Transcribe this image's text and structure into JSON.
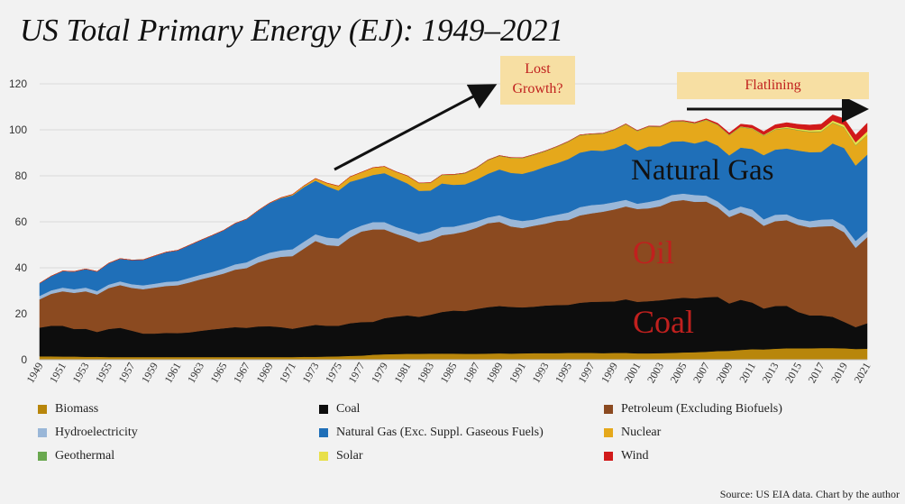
{
  "title": "US Total Primary Energy (EJ): 1949–2021",
  "annotations": {
    "lost_growth": "Lost\nGrowth?",
    "flatlining": "Flatlining",
    "natural_gas": "Natural Gas",
    "oil": "Oil",
    "coal": "Coal"
  },
  "source": "Source: US EIA data. Chart by the author",
  "colors": {
    "background": "#f2f2f2",
    "gridline": "#d9d9d9",
    "callout_fill": "#f7dfa3",
    "callout_text": "#c0201e",
    "arrow": "#111111"
  },
  "chart_data": {
    "type": "area",
    "stacked": true,
    "x": [
      1949,
      1950,
      1951,
      1952,
      1953,
      1954,
      1955,
      1956,
      1957,
      1958,
      1959,
      1960,
      1961,
      1962,
      1963,
      1964,
      1965,
      1966,
      1967,
      1968,
      1969,
      1970,
      1971,
      1972,
      1973,
      1974,
      1975,
      1976,
      1977,
      1978,
      1979,
      1980,
      1981,
      1982,
      1983,
      1984,
      1985,
      1986,
      1987,
      1988,
      1989,
      1990,
      1991,
      1992,
      1993,
      1994,
      1995,
      1996,
      1997,
      1998,
      1999,
      2000,
      2001,
      2002,
      2003,
      2004,
      2005,
      2006,
      2007,
      2008,
      2009,
      2010,
      2011,
      2012,
      2013,
      2014,
      2015,
      2016,
      2017,
      2018,
      2019,
      2020,
      2021
    ],
    "x_tick_labels": [
      "1949",
      "1951",
      "1953",
      "1955",
      "1957",
      "1959",
      "1961",
      "1963",
      "1965",
      "1967",
      "1969",
      "1971",
      "1973",
      "1975",
      "1977",
      "1979",
      "1981",
      "1983",
      "1985",
      "1987",
      "1989",
      "1991",
      "1993",
      "1995",
      "1997",
      "1999",
      "2001",
      "2003",
      "2005",
      "2007",
      "2009",
      "2011",
      "2013",
      "2015",
      "2017",
      "2019",
      "2021"
    ],
    "ylim": [
      0,
      120
    ],
    "y_ticks": [
      0,
      20,
      40,
      60,
      80,
      100,
      120
    ],
    "grid": true,
    "legend_position": "bottom",
    "series": [
      {
        "name": "Biomass",
        "color": "#b8860b",
        "values": [
          1.5,
          1.5,
          1.4,
          1.4,
          1.3,
          1.3,
          1.2,
          1.2,
          1.2,
          1.2,
          1.2,
          1.2,
          1.2,
          1.2,
          1.2,
          1.2,
          1.2,
          1.2,
          1.2,
          1.2,
          1.2,
          1.2,
          1.2,
          1.3,
          1.3,
          1.4,
          1.5,
          1.7,
          1.8,
          2.2,
          2.4,
          2.5,
          2.6,
          2.6,
          2.7,
          2.7,
          2.7,
          2.6,
          2.6,
          2.7,
          2.8,
          2.7,
          2.8,
          2.9,
          2.9,
          2.9,
          3.0,
          3.0,
          3.0,
          2.9,
          3.0,
          3.0,
          2.8,
          2.8,
          2.9,
          3.0,
          3.2,
          3.3,
          3.5,
          3.8,
          3.9,
          4.3,
          4.6,
          4.5,
          4.8,
          5.0,
          5.0,
          5.0,
          5.1,
          5.1,
          5.0,
          4.7,
          4.8
        ]
      },
      {
        "name": "Coal",
        "color": "#0d0d0d",
        "values": [
          12.5,
          13.3,
          13.4,
          12.0,
          12.2,
          10.8,
          12.2,
          12.7,
          11.5,
          10.2,
          10.2,
          10.5,
          10.4,
          10.7,
          11.4,
          12.0,
          12.5,
          13.0,
          12.7,
          13.3,
          13.4,
          13.0,
          12.3,
          13.1,
          13.9,
          13.4,
          13.3,
          14.2,
          14.6,
          14.3,
          15.7,
          16.3,
          16.7,
          16.1,
          16.9,
          18.1,
          18.7,
          18.6,
          19.5,
          20.2,
          20.6,
          20.3,
          20.0,
          20.2,
          20.7,
          20.9,
          20.9,
          21.8,
          22.2,
          22.4,
          22.4,
          23.3,
          22.4,
          22.7,
          23.0,
          23.5,
          23.8,
          23.4,
          23.7,
          23.6,
          20.6,
          21.8,
          20.3,
          17.8,
          18.6,
          18.5,
          15.8,
          14.3,
          14.2,
          13.6,
          11.5,
          9.5,
          11.1
        ]
      },
      {
        "name": "Petroleum (Excluding Biofuels)",
        "color": "#8b4a20",
        "values": [
          12.3,
          13.9,
          15.0,
          15.7,
          16.3,
          16.3,
          17.8,
          18.6,
          18.6,
          19.3,
          20.0,
          20.4,
          20.8,
          21.7,
          22.4,
          23.0,
          23.8,
          25.0,
          26.0,
          27.8,
          29.2,
          30.6,
          31.6,
          34.0,
          36.5,
          35.1,
          34.7,
          37.3,
          39.4,
          40.2,
          38.6,
          36.0,
          33.9,
          32.5,
          32.5,
          33.4,
          33.4,
          34.6,
          35.3,
          36.5,
          36.6,
          35.0,
          34.5,
          35.2,
          35.6,
          36.6,
          36.9,
          38.0,
          38.5,
          39.1,
          40.0,
          40.4,
          40.4,
          40.4,
          40.9,
          42.4,
          42.5,
          42.0,
          41.6,
          38.9,
          37.6,
          38.0,
          37.2,
          36.0,
          36.9,
          37.2,
          37.9,
          38.3,
          38.7,
          39.5,
          39.0,
          34.5,
          37.4
        ]
      },
      {
        "name": "Hydroelectricity",
        "color": "#9ab7d8",
        "values": [
          1.5,
          1.5,
          1.6,
          1.6,
          1.6,
          1.5,
          1.5,
          1.6,
          1.6,
          1.7,
          1.7,
          1.8,
          1.8,
          2.0,
          2.0,
          2.0,
          2.2,
          2.3,
          2.5,
          2.5,
          2.8,
          2.8,
          3.0,
          3.0,
          2.9,
          3.3,
          3.3,
          3.1,
          2.6,
          3.2,
          3.2,
          3.0,
          3.0,
          3.5,
          3.7,
          3.6,
          3.1,
          3.2,
          2.8,
          2.5,
          2.9,
          3.2,
          3.1,
          2.7,
          3.0,
          2.7,
          3.3,
          3.6,
          3.6,
          3.3,
          3.2,
          2.9,
          2.3,
          2.8,
          2.9,
          2.8,
          2.8,
          3.0,
          2.6,
          2.6,
          2.8,
          2.6,
          3.3,
          2.8,
          2.8,
          2.6,
          2.5,
          2.7,
          3.0,
          3.0,
          2.8,
          3.0,
          2.7
        ]
      },
      {
        "name": "Natural Gas (Exc. Suppl. Gaseous Fuels)",
        "color": "#1f6fb8",
        "values": [
          5.5,
          6.2,
          7.2,
          7.7,
          8.1,
          8.5,
          9.3,
          9.9,
          10.5,
          11.1,
          12.1,
          12.9,
          13.4,
          14.2,
          15.0,
          15.9,
          16.6,
          17.8,
          18.7,
          20.0,
          21.5,
          22.7,
          23.4,
          23.7,
          23.3,
          22.3,
          20.8,
          21.1,
          20.4,
          20.5,
          21.3,
          21.1,
          20.5,
          18.8,
          17.8,
          18.9,
          18.2,
          17.3,
          18.1,
          19.0,
          19.9,
          20.1,
          20.5,
          21.2,
          21.8,
          22.4,
          23.2,
          23.7,
          23.8,
          23.2,
          23.3,
          24.4,
          23.1,
          24.1,
          23.2,
          23.2,
          22.8,
          22.4,
          24.0,
          24.3,
          24.0,
          25.6,
          26.3,
          27.9,
          28.3,
          28.6,
          29.8,
          30.0,
          29.4,
          32.9,
          33.8,
          32.8,
          33.2
        ]
      },
      {
        "name": "Nuclear",
        "color": "#e5a81b",
        "values": [
          0,
          0,
          0,
          0,
          0,
          0,
          0,
          0,
          0,
          0,
          0,
          0,
          0,
          0,
          0,
          0,
          0,
          0,
          0.1,
          0.1,
          0.1,
          0.2,
          0.4,
          0.6,
          0.9,
          1.3,
          1.9,
          2.1,
          2.7,
          3.1,
          2.8,
          2.8,
          3.2,
          3.3,
          3.3,
          3.6,
          4.3,
          4.7,
          5.0,
          5.8,
          5.8,
          6.4,
          6.7,
          6.8,
          6.6,
          7.0,
          7.4,
          7.4,
          6.9,
          7.3,
          7.9,
          8.3,
          8.4,
          8.5,
          8.3,
          8.6,
          8.5,
          8.6,
          8.8,
          8.8,
          8.7,
          8.9,
          8.7,
          8.4,
          8.7,
          8.8,
          8.8,
          8.8,
          8.8,
          8.9,
          8.9,
          8.7,
          8.5
        ]
      },
      {
        "name": "Geothermal",
        "color": "#6aa84f",
        "values": [
          0,
          0,
          0,
          0,
          0,
          0,
          0,
          0,
          0,
          0,
          0,
          0,
          0,
          0,
          0,
          0,
          0,
          0,
          0,
          0,
          0,
          0,
          0,
          0,
          0.05,
          0.05,
          0.08,
          0.08,
          0.08,
          0.07,
          0.09,
          0.1,
          0.13,
          0.11,
          0.13,
          0.17,
          0.2,
          0.22,
          0.23,
          0.22,
          0.22,
          0.2,
          0.2,
          0.2,
          0.2,
          0.2,
          0.2,
          0.2,
          0.2,
          0.2,
          0.2,
          0.2,
          0.2,
          0.2,
          0.2,
          0.2,
          0.2,
          0.2,
          0.2,
          0.2,
          0.2,
          0.2,
          0.2,
          0.2,
          0.2,
          0.2,
          0.2,
          0.2,
          0.2,
          0.2,
          0.2,
          0.2,
          0.2
        ]
      },
      {
        "name": "Solar",
        "color": "#e8e04a",
        "values": [
          0,
          0,
          0,
          0,
          0,
          0,
          0,
          0,
          0,
          0,
          0,
          0,
          0,
          0,
          0,
          0,
          0,
          0,
          0,
          0,
          0,
          0,
          0,
          0,
          0,
          0,
          0,
          0,
          0,
          0,
          0,
          0,
          0,
          0,
          0,
          0,
          0,
          0,
          0,
          0,
          0,
          0.06,
          0.06,
          0.06,
          0.06,
          0.07,
          0.07,
          0.07,
          0.07,
          0.07,
          0.07,
          0.07,
          0.06,
          0.06,
          0.06,
          0.06,
          0.07,
          0.07,
          0.08,
          0.09,
          0.1,
          0.13,
          0.17,
          0.23,
          0.32,
          0.43,
          0.5,
          0.6,
          0.76,
          0.84,
          0.95,
          1.2,
          1.4
        ]
      },
      {
        "name": "Wind",
        "color": "#d11a1a",
        "values": [
          0,
          0,
          0,
          0,
          0,
          0,
          0,
          0,
          0,
          0,
          0,
          0,
          0,
          0,
          0,
          0,
          0,
          0,
          0,
          0,
          0,
          0,
          0,
          0,
          0,
          0,
          0,
          0,
          0,
          0,
          0,
          0,
          0,
          0,
          0,
          0,
          0,
          0,
          0,
          0,
          0,
          0.03,
          0.03,
          0.03,
          0.03,
          0.04,
          0.04,
          0.04,
          0.04,
          0.04,
          0.05,
          0.06,
          0.08,
          0.11,
          0.12,
          0.15,
          0.19,
          0.28,
          0.36,
          0.57,
          0.76,
          0.97,
          1.2,
          1.4,
          1.6,
          1.8,
          1.9,
          2.2,
          2.3,
          2.5,
          2.7,
          3.2,
          3.6
        ]
      }
    ],
    "legend_order": [
      "Biomass",
      "Coal",
      "Petroleum (Excluding Biofuels)",
      "Hydroelectricity",
      "Natural Gas (Exc. Suppl. Gaseous Fuels)",
      "Nuclear",
      "Geothermal",
      "Solar",
      "Wind"
    ]
  }
}
